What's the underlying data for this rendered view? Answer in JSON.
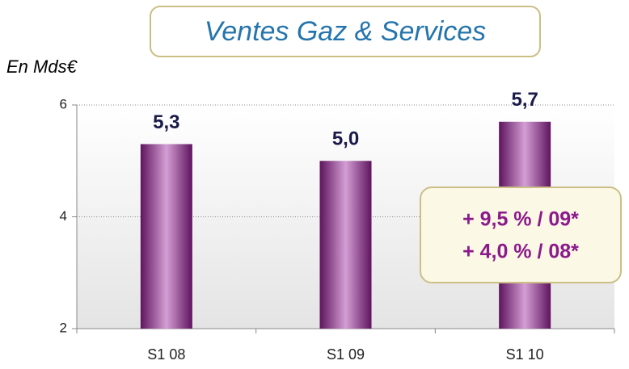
{
  "chart_data": {
    "type": "bar",
    "title": "Ventes Gaz & Services",
    "y_label": "En Mds€",
    "categories": [
      "S1 08",
      "S1 09",
      "S1 10"
    ],
    "values": [
      5.3,
      5.0,
      5.7
    ],
    "value_labels": [
      "5,3",
      "5,0",
      "5,7"
    ],
    "color": "#8a2a8a",
    "ylim": [
      2,
      6
    ],
    "yticks": [
      2,
      4,
      6
    ],
    "grid": true,
    "annotations": [
      "+ 9,5 % / 09*",
      "+ 4,0 % / 08*"
    ]
  }
}
